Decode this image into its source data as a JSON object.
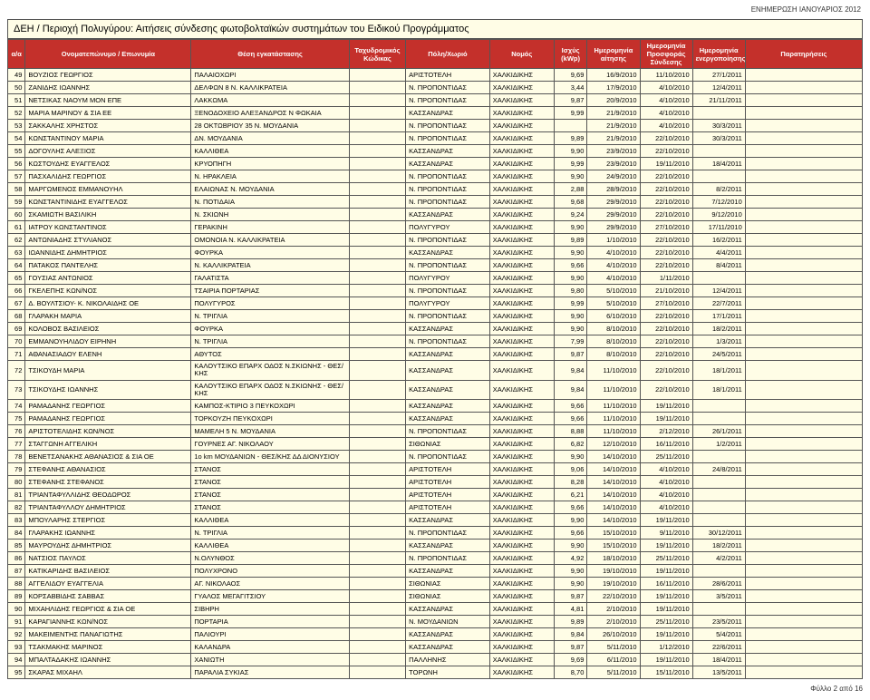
{
  "header_right": "ΕΝΗΜΕΡΩΣΗ ΙΑΝΟΥΑΡΙΟΣ 2012",
  "title": "ΔΕΗ / Περιοχή Πολυγύρου: Αιτήσεις σύνδεσης φωτοβολταϊκών συστημάτων του Ειδικού Προγράμματος",
  "footer": "Φύλλο 2 από 16",
  "columns": [
    "α/α",
    "Ονοματεπώνυμο / Επωνυμία",
    "Θέση εγκατάστασης",
    "Ταχυδρομικός Κώδικας",
    "Πόλη/Χωριό",
    "Νομός",
    "Ισχύς (kWp)",
    "Ημερομηνία αίτησης",
    "Ημερομηνία Προσφοράς Σύνδεσης",
    "Ημερομηνία ενεργοποίησης",
    "Παρατηρήσεις"
  ],
  "rows": [
    [
      "49",
      "ΒΟΥΖΙΟΣ ΓΕΩΡΓΙΟΣ",
      "ΠΑΛΑΙΟΧΩΡΙ",
      "",
      "ΑΡΙΣΤΟΤΕΛΗ",
      "ΧΑΛΚΙΔΙΚΗΣ",
      "9,69",
      "16/9/2010",
      "11/10/2010",
      "27/1/2011",
      ""
    ],
    [
      "50",
      "ΖΑΝΙΔΗΣ ΙΩΑΝΝΗΣ",
      "ΔΕΛΦΩΝ 8 Ν. ΚΑΛΛΙΚΡΑΤΕΙΑ",
      "",
      "Ν. ΠΡΟΠΟΝΤΙΔΑΣ",
      "ΧΑΛΚΙΔΙΚΗΣ",
      "3,44",
      "17/9/2010",
      "4/10/2010",
      "12/4/2011",
      ""
    ],
    [
      "51",
      "ΝΕΤΣΙΚΑΣ ΝΑΟΥΜ ΜΟΝ ΕΠΕ",
      "ΛΑΚΚΩΜΑ",
      "",
      "Ν. ΠΡΟΠΟΝΤΙΔΑΣ",
      "ΧΑΛΚΙΔΙΚΗΣ",
      "9,87",
      "20/9/2010",
      "4/10/2010",
      "21/11/2011",
      ""
    ],
    [
      "52",
      "ΜΑΡΙΑ ΜΑΡΙΝΟΥ & ΣΙΑ ΕΕ",
      "ΞΕΝΟΔΟΧΕΙΟ ΑΛΕΞΑΝΔΡΟΣ Ν ΦΩΚΑΙΑ",
      "",
      "ΚΑΣΣΑΝΔΡΑΣ",
      "ΧΑΛΚΙΔΙΚΗΣ",
      "9,99",
      "21/9/2010",
      "4/10/2010",
      "",
      ""
    ],
    [
      "53",
      "ΣΑΚΚΑΛΗΣ ΧΡΗΣΤΟΣ",
      "28 ΟΚΤΩΒΡΙΟΥ 35 Ν. ΜΟΥΔΑΝΙΑ",
      "",
      "Ν. ΠΡΟΠΟΝΤΙΔΑΣ",
      "ΧΑΛΚΙΔΙΚΗΣ",
      "",
      "21/9/2010",
      "4/10/2010",
      "30/3/2011",
      ""
    ],
    [
      "54",
      "ΚΩΝΣΤΑΝΤΙΝΟΥ ΜΑΡΙΑ",
      "ΔΝ. ΜΟΥΔΑΝΙΑ",
      "",
      "Ν. ΠΡΟΠΟΝΤΙΔΑΣ",
      "ΧΑΛΚΙΔΙΚΗΣ",
      "9,89",
      "21/9/2010",
      "22/10/2010",
      "30/3/2011",
      ""
    ],
    [
      "55",
      "ΔΟΓΟΥΛΗΣ ΑΛΕΞΙΟΣ",
      "ΚΑΛΛΙΘΕΑ",
      "",
      "ΚΑΣΣΑΝΔΡΑΣ",
      "ΧΑΛΚΙΔΙΚΗΣ",
      "9,90",
      "23/9/2010",
      "22/10/2010",
      "",
      ""
    ],
    [
      "56",
      "ΚΩΣΤΟΥΔΗΣ ΕΥΑΓΓΕΛΟΣ",
      "ΚΡΥΟΠΗΓΗ",
      "",
      "ΚΑΣΣΑΝΔΡΑΣ",
      "ΧΑΛΚΙΔΙΚΗΣ",
      "9,99",
      "23/9/2010",
      "19/11/2010",
      "18/4/2011",
      ""
    ],
    [
      "57",
      "ΠΑΣΧΑΛΙΔΗΣ ΓΕΩΡΓΙΟΣ",
      "Ν. ΗΡΑΚΛΕΙΑ",
      "",
      "Ν. ΠΡΟΠΟΝΤΙΔΑΣ",
      "ΧΑΛΚΙΔΙΚΗΣ",
      "9,90",
      "24/9/2010",
      "22/10/2010",
      "",
      ""
    ],
    [
      "58",
      "ΜΑΡΓΩΜΕΝΟΣ ΕΜΜΑΝΟΥΗΛ",
      "ΕΛΑΙΩΝΑΣ Ν. ΜΟΥΔΑΝΙΑ",
      "",
      "Ν. ΠΡΟΠΟΝΤΙΔΑΣ",
      "ΧΑΛΚΙΔΙΚΗΣ",
      "2,88",
      "28/9/2010",
      "22/10/2010",
      "8/2/2011",
      ""
    ],
    [
      "59",
      "ΚΩΝΣΤΑΝΤΙΝΙΔΗΣ ΕΥΑΓΓΕΛΟΣ",
      "Ν. ΠΟΤΙΔΑΙΑ",
      "",
      "Ν. ΠΡΟΠΟΝΤΙΔΑΣ",
      "ΧΑΛΚΙΔΙΚΗΣ",
      "9,68",
      "29/9/2010",
      "22/10/2010",
      "7/12/2010",
      ""
    ],
    [
      "60",
      "ΣΚΑΜΙΩΤΗ ΒΑΣΙΛΙΚΗ",
      "Ν. ΣΚΙΩΝΗ",
      "",
      "ΚΑΣΣΑΝΔΡΑΣ",
      "ΧΑΛΚΙΔΙΚΗΣ",
      "9,24",
      "29/9/2010",
      "22/10/2010",
      "9/12/2010",
      ""
    ],
    [
      "61",
      "ΙΑΤΡΟΥ ΚΩΝΣΤΑΝΤΙΝΟΣ",
      "ΓΕΡΑΚΙΝΗ",
      "",
      "ΠΟΛΥΓΥΡΟΥ",
      "ΧΑΛΚΙΔΙΚΗΣ",
      "9,90",
      "29/9/2010",
      "27/10/2010",
      "17/11/2010",
      ""
    ],
    [
      "62",
      "ΑΝΤΩΝΙΑΔΗΣ ΣΤΥΛΙΑΝΟΣ",
      "ΟΜΟΝΟΙΑ Ν. ΚΑΛΛΙΚΡΑΤΕΙΑ",
      "",
      "Ν. ΠΡΟΠΟΝΤΙΔΑΣ",
      "ΧΑΛΚΙΔΙΚΗΣ",
      "9,89",
      "1/10/2010",
      "22/10/2010",
      "16/2/2011",
      ""
    ],
    [
      "63",
      "ΙΩΑΝΝΙΔΗΣ ΔΗΜΗΤΡΙΟΣ",
      "ΦΟΥΡΚΑ",
      "",
      "ΚΑΣΣΑΝΔΡΑΣ",
      "ΧΑΛΚΙΔΙΚΗΣ",
      "9,90",
      "4/10/2010",
      "22/10/2010",
      "4/4/2011",
      ""
    ],
    [
      "64",
      "ΠΑΤΑΚΟΣ ΠΑΝΤΕΛΗΣ",
      "Ν. ΚΑΛΛΙΚΡΑΤΕΙΑ",
      "",
      "Ν. ΠΡΟΠΟΝΤΙΔΑΣ",
      "ΧΑΛΚΙΔΙΚΗΣ",
      "9,66",
      "4/10/2010",
      "22/10/2010",
      "8/4/2011",
      ""
    ],
    [
      "65",
      "ΓΟΥΣΙΑΣ ΑΝΤΩΝΙΟΣ",
      "ΓΑΛΑΤΙΣΤΑ",
      "",
      "ΠΟΛΥΓΥΡΟΥ",
      "ΧΑΛΚΙΔΙΚΗΣ",
      "9,90",
      "4/10/2010",
      "1/11/2010",
      "",
      ""
    ],
    [
      "66",
      "ΓΚΕΛΕΠΗΣ ΚΩΝ/ΝΟΣ",
      "ΤΣΑΙΡΙΑ ΠΟΡΤΑΡΙΑΣ",
      "",
      "Ν. ΠΡΟΠΟΝΤΙΔΑΣ",
      "ΧΑΛΚΙΔΙΚΗΣ",
      "9,80",
      "5/10/2010",
      "21/10/2010",
      "12/4/2011",
      ""
    ],
    [
      "67",
      "Δ. ΒΟΥΛΤΣΙΟΥ- Κ. ΝΙΚΟΛΑΙΔΗΣ ΟΕ",
      "ΠΟΛΥΓΥΡΟΣ",
      "",
      "ΠΟΛΥΓΥΡΟΥ",
      "ΧΑΛΚΙΔΙΚΗΣ",
      "9,99",
      "5/10/2010",
      "27/10/2010",
      "22/7/2011",
      ""
    ],
    [
      "68",
      "ΓΛΑΡΑΚΗ ΜΑΡΙΑ",
      "Ν. ΤΡΙΓΛΙΑ",
      "",
      "Ν. ΠΡΟΠΟΝΤΙΔΑΣ",
      "ΧΑΛΚΙΔΙΚΗΣ",
      "9,90",
      "6/10/2010",
      "22/10/2010",
      "17/1/2011",
      ""
    ],
    [
      "69",
      "ΚΟΛΟΒΟΣ ΒΑΣΙΛΕΙΟΣ",
      "ΦΟΥΡΚΑ",
      "",
      "ΚΑΣΣΑΝΔΡΑΣ",
      "ΧΑΛΚΙΔΙΚΗΣ",
      "9,90",
      "8/10/2010",
      "22/10/2010",
      "18/2/2011",
      ""
    ],
    [
      "70",
      "ΕΜΜΑΝΟΥΗΛΙΔΟΥ ΕΙΡΗΝΗ",
      "Ν. ΤΡΙΓΛΙΑ",
      "",
      "Ν. ΠΡΟΠΟΝΤΙΔΑΣ",
      "ΧΑΛΚΙΔΙΚΗΣ",
      "7,99",
      "8/10/2010",
      "22/10/2010",
      "1/3/2011",
      ""
    ],
    [
      "71",
      "ΑΘΑΝΑΣΙΑΔΟΥ ΕΛΕΝΗ",
      "ΑΘΥΤΟΣ",
      "",
      "ΚΑΣΣΑΝΔΡΑΣ",
      "ΧΑΛΚΙΔΙΚΗΣ",
      "9,87",
      "8/10/2010",
      "22/10/2010",
      "24/5/2011",
      ""
    ],
    [
      "72",
      "ΤΣΙΚΟΥΔΗ ΜΑΡΙΑ",
      "ΚΑΛΟΥΤΣΙΚΟ ΕΠΑΡΧ ΟΔΟΣ Ν.ΣΚΙΩΝΗΣ - ΘΕΣ/ΚΗΣ",
      "",
      "ΚΑΣΣΑΝΔΡΑΣ",
      "ΧΑΛΚΙΔΙΚΗΣ",
      "9,84",
      "11/10/2010",
      "22/10/2010",
      "18/1/2011",
      ""
    ],
    [
      "73",
      "ΤΣΙΚΟΥΔΗΣ ΙΩΑΝΝΗΣ",
      "ΚΑΛΟΥΤΣΙΚΟ ΕΠΑΡΧ ΟΔΟΣ Ν.ΣΚΙΩΝΗΣ - ΘΕΣ/ΚΗΣ",
      "",
      "ΚΑΣΣΑΝΔΡΑΣ",
      "ΧΑΛΚΙΔΙΚΗΣ",
      "9,84",
      "11/10/2010",
      "22/10/2010",
      "18/1/2011",
      ""
    ],
    [
      "74",
      "ΡΑΜΑΔΑΝΗΣ ΓΕΩΡΓΙΟΣ",
      "ΚΑΜΠΟΣ-ΚΤΙΡΙΟ 3 ΠΕΥΚΟΧΩΡΙ",
      "",
      "ΚΑΣΣΑΝΔΡΑΣ",
      "ΧΑΛΚΙΔΙΚΗΣ",
      "9,66",
      "11/10/2010",
      "19/11/2010",
      "",
      ""
    ],
    [
      "75",
      "ΡΑΜΑΔΑΝΗΣ ΓΕΩΡΓΙΟΣ",
      "ΤΟΡΚΟΥΖΗ ΠΕΥΚΟΧΩΡΙ",
      "",
      "ΚΑΣΣΑΝΔΡΑΣ",
      "ΧΑΛΚΙΔΙΚΗΣ",
      "9,66",
      "11/10/2010",
      "19/11/2010",
      "",
      ""
    ],
    [
      "76",
      "ΑΡΙΣΤΟΤΕΛΙΔΗΣ ΚΩΝ/ΝΟΣ",
      "ΜΑΜΕΛΗ 5 Ν. ΜΟΥΔΑΝΙΑ",
      "",
      "Ν. ΠΡΟΠΟΝΤΙΔΑΣ",
      "ΧΑΛΚΙΔΙΚΗΣ",
      "8,88",
      "11/10/2010",
      "2/12/2010",
      "26/1/2011",
      ""
    ],
    [
      "77",
      "ΣΤΑΓΓΩΝΗ ΑΓΓΕΛΙΚΗ",
      "ΓΟΥΡΝΕΣ ΑΓ. ΝΙΚΟΛΑΟΥ",
      "",
      "ΣΙΘΩΝΙΑΣ",
      "ΧΑΛΚΙΔΙΚΗΣ",
      "6,82",
      "12/10/2010",
      "16/11/2010",
      "1/2/2011",
      ""
    ],
    [
      "78",
      "ΒΕΝΕΤΣΑΝΑΚΗΣ ΑΘΑΝΑΣΙΟΣ & ΣΙΑ ΟΕ",
      "1ο km ΜΟΥΔΑΝΙΩΝ - ΘΕΣ/ΚΗΣ ΔΔ ΔΙΟΝΥΣΙΟΥ",
      "",
      "Ν. ΠΡΟΠΟΝΤΙΔΑΣ",
      "ΧΑΛΚΙΔΙΚΗΣ",
      "9,90",
      "14/10/2010",
      "25/11/2010",
      "",
      ""
    ],
    [
      "79",
      "ΣΤΕΦΑΝΗΣ ΑΘΑΝΑΣΙΟΣ",
      "ΣΤΑΝΟΣ",
      "",
      "ΑΡΙΣΤΟΤΕΛΗ",
      "ΧΑΛΚΙΔΙΚΗΣ",
      "9,06",
      "14/10/2010",
      "4/10/2010",
      "24/8/2011",
      ""
    ],
    [
      "80",
      "ΣΤΕΦΑΝΗΣ ΣΤΕΦΑΝΟΣ",
      "ΣΤΑΝΟΣ",
      "",
      "ΑΡΙΣΤΟΤΕΛΗ",
      "ΧΑΛΚΙΔΙΚΗΣ",
      "8,28",
      "14/10/2010",
      "4/10/2010",
      "",
      ""
    ],
    [
      "81",
      "ΤΡΙΑΝΤΑΦΥΛΛΙΔΗΣ ΘΕΟΔΩΡΟΣ",
      "ΣΤΑΝΟΣ",
      "",
      "ΑΡΙΣΤΟΤΕΛΗ",
      "ΧΑΛΚΙΔΙΚΗΣ",
      "6,21",
      "14/10/2010",
      "4/10/2010",
      "",
      ""
    ],
    [
      "82",
      "ΤΡΙΑΝΤΑΦΥΛΛΟΥ ΔΗΜΗΤΡΙΟΣ",
      "ΣΤΑΝΟΣ",
      "",
      "ΑΡΙΣΤΟΤΕΛΗ",
      "ΧΑΛΚΙΔΙΚΗΣ",
      "9,66",
      "14/10/2010",
      "4/10/2010",
      "",
      ""
    ],
    [
      "83",
      "ΜΠΟΥΛΑΡΗΣ ΣΤΕΡΓΙΟΣ",
      "ΚΑΛΛΙΘΕΑ",
      "",
      "ΚΑΣΣΑΝΔΡΑΣ",
      "ΧΑΛΚΙΔΙΚΗΣ",
      "9,90",
      "14/10/2010",
      "19/11/2010",
      "",
      ""
    ],
    [
      "84",
      "ΓΛΑΡΑΚΗΣ ΙΩΑΝΝΗΣ",
      "Ν. ΤΡΙΓΛΙΑ",
      "",
      "Ν. ΠΡΟΠΟΝΤΙΔΑΣ",
      "ΧΑΛΚΙΔΙΚΗΣ",
      "9,66",
      "15/10/2010",
      "9/11/2010",
      "30/12/2011",
      ""
    ],
    [
      "85",
      "ΜΑΥΡΟΥΔΗΣ ΔΗΜΗΤΡΙΟΣ",
      "ΚΑΛΛΙΘΕΑ",
      "",
      "ΚΑΣΣΑΝΔΡΑΣ",
      "ΧΑΛΚΙΔΙΚΗΣ",
      "9,90",
      "15/10/2010",
      "19/11/2010",
      "18/2/2011",
      ""
    ],
    [
      "86",
      "ΝΑΤΣΙΟΣ ΠΑΥΛΟΣ",
      "Ν.ΟΛΥΝΘΟΣ",
      "",
      "Ν. ΠΡΟΠΟΝΤΙΔΑΣ",
      "ΧΑΛΚΙΔΙΚΗΣ",
      "4,92",
      "18/10/2010",
      "25/11/2010",
      "4/2/2011",
      ""
    ],
    [
      "87",
      "ΚΑΤΙΚΑΡΙΔΗΣ ΒΑΣΙΛΕΙΟΣ",
      "ΠΟΛΥΧΡΟΝΟ",
      "",
      "ΚΑΣΣΑΝΔΡΑΣ",
      "ΧΑΛΚΙΔΙΚΗΣ",
      "9,90",
      "19/10/2010",
      "19/11/2010",
      "",
      ""
    ],
    [
      "88",
      "ΑΓΓΕΛΙΔΟΥ ΕΥΑΓΓΕΛΙΑ",
      "ΑΓ. ΝΙΚΟΛΑΟΣ",
      "",
      "ΣΙΘΩΝΙΑΣ",
      "ΧΑΛΚΙΔΙΚΗΣ",
      "9,90",
      "19/10/2010",
      "16/11/2010",
      "28/6/2011",
      ""
    ],
    [
      "89",
      "ΚΟΡΣΑΒΒΙΔΗΣ ΣΑΒΒΑΣ",
      "ΓΥΑΛΟΣ ΜΕΓΑΓΙΤΣΙΟΥ",
      "",
      "ΣΙΘΩΝΙΑΣ",
      "ΧΑΛΚΙΔΙΚΗΣ",
      "9,87",
      "22/10/2010",
      "19/11/2010",
      "3/5/2011",
      ""
    ],
    [
      "90",
      "ΜΙΧΑΗΛΙΔΗΣ ΓΕΩΡΓΙΟΣ & ΣΙΑ ΟΕ",
      "ΣΙΒΗΡΗ",
      "",
      "ΚΑΣΣΑΝΔΡΑΣ",
      "ΧΑΛΚΙΔΙΚΗΣ",
      "4,81",
      "2/10/2010",
      "19/11/2010",
      "",
      ""
    ],
    [
      "91",
      "ΚΑΡΑΓΙΑΝΝΗΣ ΚΩΝ/ΝΟΣ",
      "ΠΟΡΤΑΡΙΑ",
      "",
      "Ν. ΜΟΥΔΑΝΙΩΝ",
      "ΧΑΛΚΙΔΙΚΗΣ",
      "9,89",
      "2/10/2010",
      "25/11/2010",
      "23/5/2011",
      ""
    ],
    [
      "92",
      "ΜΑΚΕΙΜΕΝΤΗΣ ΠΑΝΑΓΙΩΤΗΣ",
      "ΠΑΛΙΟΥΡΙ",
      "",
      "ΚΑΣΣΑΝΔΡΑΣ",
      "ΧΑΛΚΙΔΙΚΗΣ",
      "9,84",
      "26/10/2010",
      "19/11/2010",
      "5/4/2011",
      ""
    ],
    [
      "93",
      "ΤΣΑΚΜΑΚΗΣ ΜΑΡΙΝΟΣ",
      "ΚΑΛΑΝΔΡΑ",
      "",
      "ΚΑΣΣΑΝΔΡΑΣ",
      "ΧΑΛΚΙΔΙΚΗΣ",
      "9,87",
      "5/11/2010",
      "1/12/2010",
      "22/6/2011",
      ""
    ],
    [
      "94",
      "ΜΠΑΛΤΑΔΑΚΗΣ ΙΩΑΝΝΗΣ",
      "ΧΑΝΙΩΤΗ",
      "",
      "ΠΑΛΛΗΝΗΣ",
      "ΧΑΛΚΙΔΙΚΗΣ",
      "9,69",
      "6/11/2010",
      "19/11/2010",
      "18/4/2011",
      ""
    ],
    [
      "95",
      "ΣΚΑΡΑΣ ΜΙΧΑΗΛ",
      "ΠΑΡΑΛΙΑ ΣΥΚΙΑΣ",
      "",
      "ΤΟΡΩΝΗ",
      "ΧΑΛΚΙΔΙΚΗΣ",
      "8,70",
      "5/11/2010",
      "15/11/2010",
      "13/5/2011",
      ""
    ]
  ]
}
